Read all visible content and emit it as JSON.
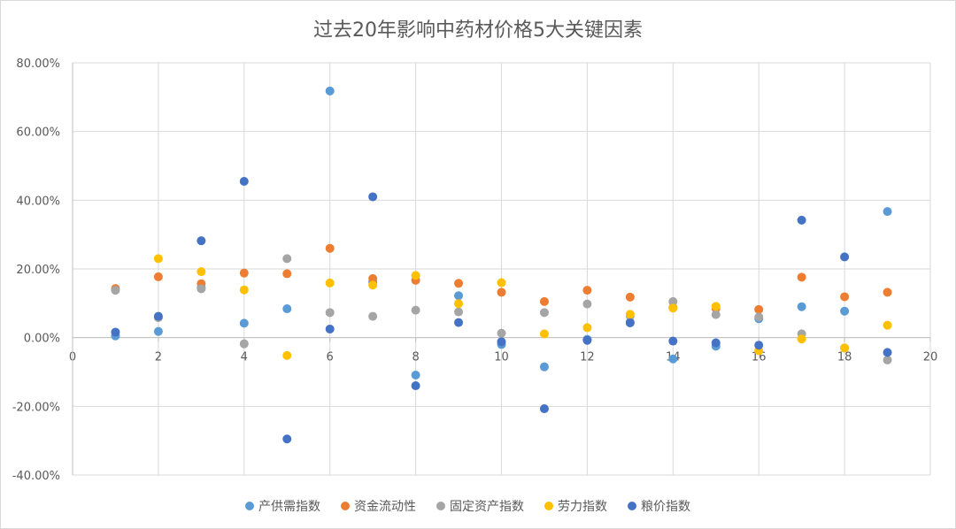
{
  "chart_data": {
    "type": "scatter",
    "title": "过去20年影响中药材价格5大关键因素",
    "xlim": [
      0,
      20
    ],
    "ylim": [
      -0.4,
      0.8
    ],
    "x_ticks": [
      0,
      2,
      4,
      6,
      8,
      10,
      12,
      14,
      16,
      18,
      20
    ],
    "x_tick_labels": [
      "0",
      "2",
      "4",
      "6",
      "8",
      "10",
      "12",
      "14",
      "16",
      "18",
      "20"
    ],
    "y_ticks": [
      -0.4,
      -0.2,
      0,
      0.2,
      0.4,
      0.6,
      0.8
    ],
    "y_tick_labels": [
      "-40.00%",
      "-20.00%",
      "0.00%",
      "20.00%",
      "40.00%",
      "60.00%",
      "80.00%"
    ],
    "grid": true,
    "legend_position": "bottom",
    "series": [
      {
        "name": "产供需指数",
        "color": "#5B9BD5",
        "x": [
          1,
          2,
          3,
          4,
          5,
          6,
          7,
          8,
          9,
          10,
          11,
          12,
          13,
          14,
          15,
          16,
          17,
          18,
          19
        ],
        "y": [
          0.005,
          0.018,
          0.145,
          0.042,
          0.084,
          0.718,
          0.162,
          -0.109,
          0.122,
          -0.02,
          -0.085,
          -0.005,
          0.045,
          -0.062,
          -0.025,
          0.055,
          0.09,
          0.077,
          0.367
        ]
      },
      {
        "name": "资金流动性",
        "color": "#ED7D31",
        "x": [
          1,
          2,
          3,
          4,
          5,
          6,
          7,
          8,
          9,
          10,
          11,
          12,
          13,
          14,
          15,
          16,
          17,
          18,
          19
        ],
        "y": [
          0.143,
          0.177,
          0.157,
          0.188,
          0.186,
          0.26,
          0.172,
          0.167,
          0.158,
          0.132,
          0.105,
          0.138,
          0.118,
          0.088,
          0.085,
          0.082,
          0.176,
          0.119,
          0.132
        ]
      },
      {
        "name": "固定资产指数",
        "color": "#A5A5A5",
        "x": [
          1,
          2,
          3,
          4,
          5,
          6,
          7,
          8,
          9,
          10,
          11,
          12,
          13,
          14,
          15,
          16,
          17,
          18,
          19
        ],
        "y": [
          0.138,
          0.058,
          0.142,
          -0.018,
          0.23,
          0.073,
          0.062,
          0.08,
          0.075,
          0.013,
          0.073,
          0.098,
          0.063,
          0.105,
          0.067,
          0.06,
          0.011,
          -0.03,
          -0.065
        ]
      },
      {
        "name": "劳力指数",
        "color": "#FFC000",
        "x": [
          2,
          3,
          4,
          5,
          6,
          7,
          8,
          9,
          10,
          11,
          12,
          13,
          14,
          15,
          16,
          17,
          18,
          19
        ],
        "y": [
          0.23,
          0.192,
          0.139,
          -0.052,
          0.159,
          0.153,
          0.181,
          0.099,
          0.16,
          0.011,
          0.029,
          0.068,
          0.086,
          0.091,
          -0.038,
          -0.004,
          -0.03,
          0.036
        ]
      },
      {
        "name": "粮价指数",
        "color": "#4472C4",
        "x": [
          1,
          2,
          3,
          4,
          5,
          6,
          7,
          8,
          9,
          10,
          11,
          12,
          13,
          14,
          15,
          16,
          17,
          18,
          19
        ],
        "y": [
          0.016,
          0.062,
          0.282,
          0.455,
          -0.295,
          0.025,
          0.41,
          -0.14,
          0.044,
          -0.012,
          -0.207,
          -0.008,
          0.043,
          -0.01,
          -0.015,
          -0.022,
          0.342,
          0.235,
          -0.043
        ]
      }
    ]
  }
}
